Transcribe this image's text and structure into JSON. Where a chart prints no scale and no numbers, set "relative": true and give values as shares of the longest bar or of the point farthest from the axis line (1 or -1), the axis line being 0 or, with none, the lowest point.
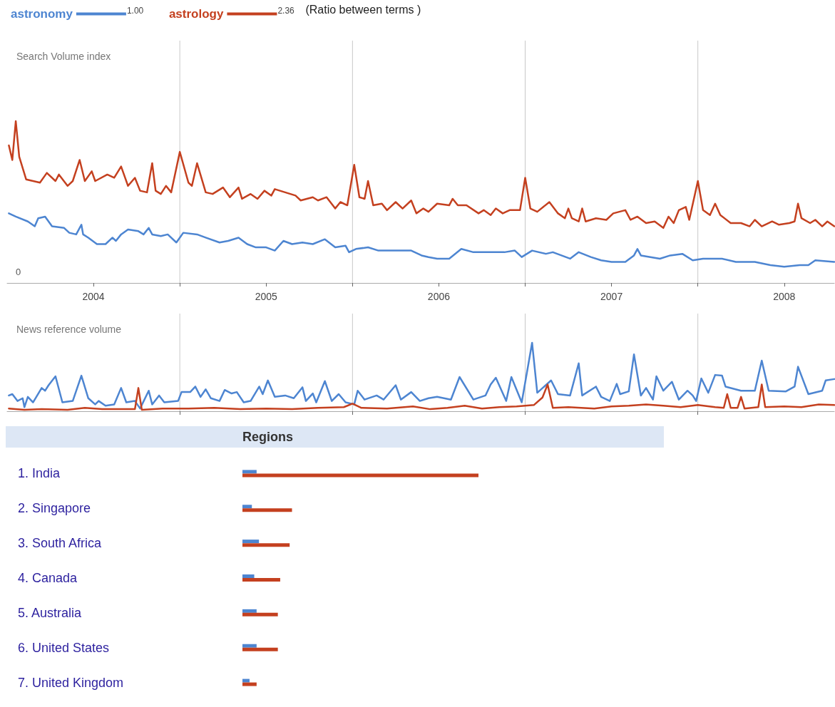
{
  "chart_data": [
    {
      "type": "line",
      "title": "Search Volume index",
      "relative": true,
      "grid": "x",
      "legend": "top left",
      "tick_labels": "x",
      "xlim": [
        2004,
        2008.79
      ],
      "xticks": [
        {
          "value": 2004.5,
          "label": "2004"
        },
        {
          "value": 2005,
          "label": null
        },
        {
          "value": 2005.5,
          "label": "2005"
        },
        {
          "value": 2006,
          "label": null
        },
        {
          "value": 2006.5,
          "label": "2006"
        },
        {
          "value": 2007,
          "label": null
        },
        {
          "value": 2007.5,
          "label": "2007"
        },
        {
          "value": 2008,
          "label": null
        },
        {
          "value": 2008.5,
          "label": "2008"
        }
      ],
      "annotations": [
        "1.00",
        "2.36",
        "(Ratio between terms )",
        "0"
      ],
      "series": [
        {
          "name": "astronomy",
          "color": "#4d85d1",
          "x": [
            2004.01,
            2004.05,
            2004.12,
            2004.16,
            2004.18,
            2004.22,
            2004.26,
            2004.33,
            2004.36,
            2004.4,
            2004.43,
            2004.44,
            2004.47,
            2004.52,
            2004.57,
            2004.61,
            2004.63,
            2004.66,
            2004.7,
            2004.76,
            2004.79,
            2004.82,
            2004.84,
            2004.89,
            2004.93,
            2004.98,
            2005.02,
            2005.1,
            2005.15,
            2005.23,
            2005.28,
            2005.34,
            2005.39,
            2005.44,
            2005.5,
            2005.55,
            2005.6,
            2005.65,
            2005.71,
            2005.77,
            2005.84,
            2005.9,
            2005.96,
            2005.98,
            2006.02,
            2006.09,
            2006.15,
            2006.23,
            2006.34,
            2006.4,
            2006.44,
            2006.49,
            2006.56,
            2006.63,
            2006.7,
            2006.79,
            2006.88,
            2006.94,
            2006.98,
            2007.04,
            2007.12,
            2007.16,
            2007.26,
            2007.31,
            2007.38,
            2007.44,
            2007.5,
            2007.58,
            2007.63,
            2007.65,
            2007.67,
            2007.78,
            2007.84,
            2007.91,
            2007.97,
            2008.03,
            2008.14,
            2008.22,
            2008.33,
            2008.42,
            2008.5,
            2008.59,
            2008.64,
            2008.68,
            2008.79
          ],
          "values": [
            0.43,
            0.41,
            0.38,
            0.35,
            0.4,
            0.41,
            0.35,
            0.34,
            0.31,
            0.3,
            0.36,
            0.3,
            0.28,
            0.24,
            0.24,
            0.28,
            0.26,
            0.3,
            0.33,
            0.32,
            0.3,
            0.34,
            0.3,
            0.29,
            0.3,
            0.25,
            0.31,
            0.3,
            0.28,
            0.25,
            0.26,
            0.28,
            0.24,
            0.22,
            0.22,
            0.2,
            0.26,
            0.24,
            0.25,
            0.24,
            0.27,
            0.22,
            0.23,
            0.19,
            0.21,
            0.22,
            0.2,
            0.2,
            0.2,
            0.17,
            0.16,
            0.15,
            0.15,
            0.21,
            0.19,
            0.19,
            0.19,
            0.2,
            0.16,
            0.2,
            0.18,
            0.19,
            0.15,
            0.19,
            0.16,
            0.14,
            0.13,
            0.13,
            0.17,
            0.21,
            0.17,
            0.15,
            0.17,
            0.18,
            0.14,
            0.15,
            0.15,
            0.13,
            0.13,
            0.11,
            0.1,
            0.11,
            0.11,
            0.14,
            0.13
          ]
        },
        {
          "name": "astrology",
          "color": "#c4401f",
          "x": [
            2004.01,
            2004.03,
            2004.05,
            2004.07,
            2004.11,
            2004.19,
            2004.23,
            2004.28,
            2004.3,
            2004.35,
            2004.38,
            2004.42,
            2004.45,
            2004.49,
            2004.51,
            2004.58,
            2004.62,
            2004.66,
            2004.7,
            2004.74,
            2004.77,
            2004.81,
            2004.84,
            2004.86,
            2004.89,
            2004.92,
            2004.95,
            2005.0,
            2005.05,
            2005.07,
            2005.1,
            2005.15,
            2005.19,
            2005.25,
            2005.29,
            2005.34,
            2005.36,
            2005.41,
            2005.45,
            2005.49,
            2005.53,
            2005.55,
            2005.61,
            2005.67,
            2005.7,
            2005.77,
            2005.8,
            2005.85,
            2005.9,
            2005.93,
            2005.97,
            2006.01,
            2006.04,
            2006.07,
            2006.09,
            2006.12,
            2006.17,
            2006.2,
            2006.25,
            2006.29,
            2006.34,
            2006.37,
            2006.41,
            2006.44,
            2006.49,
            2006.56,
            2006.58,
            2006.61,
            2006.66,
            2006.73,
            2006.76,
            2006.8,
            2006.83,
            2006.87,
            2006.91,
            2006.97,
            2007.0,
            2007.03,
            2007.07,
            2007.14,
            2007.19,
            2007.23,
            2007.25,
            2007.27,
            2007.31,
            2007.33,
            2007.35,
            2007.41,
            2007.47,
            2007.51,
            2007.58,
            2007.61,
            2007.65,
            2007.7,
            2007.75,
            2007.8,
            2007.83,
            2007.86,
            2007.89,
            2007.93,
            2007.95,
            2008.0,
            2008.03,
            2008.07,
            2008.1,
            2008.13,
            2008.19,
            2008.25,
            2008.3,
            2008.33,
            2008.37,
            2008.43,
            2008.47,
            2008.53,
            2008.56,
            2008.58,
            2008.6,
            2008.65,
            2008.68,
            2008.72,
            2008.75,
            2008.79
          ],
          "values": [
            0.85,
            0.76,
            1.0,
            0.78,
            0.64,
            0.62,
            0.68,
            0.63,
            0.67,
            0.6,
            0.63,
            0.76,
            0.63,
            0.69,
            0.63,
            0.67,
            0.65,
            0.72,
            0.6,
            0.65,
            0.57,
            0.56,
            0.74,
            0.57,
            0.55,
            0.6,
            0.56,
            0.81,
            0.62,
            0.6,
            0.74,
            0.56,
            0.55,
            0.59,
            0.53,
            0.59,
            0.52,
            0.55,
            0.52,
            0.57,
            0.54,
            0.58,
            0.56,
            0.54,
            0.51,
            0.53,
            0.51,
            0.53,
            0.46,
            0.5,
            0.48,
            0.73,
            0.53,
            0.52,
            0.63,
            0.48,
            0.49,
            0.45,
            0.5,
            0.46,
            0.51,
            0.43,
            0.46,
            0.44,
            0.49,
            0.48,
            0.52,
            0.48,
            0.48,
            0.43,
            0.45,
            0.42,
            0.46,
            0.43,
            0.45,
            0.45,
            0.65,
            0.46,
            0.44,
            0.5,
            0.43,
            0.4,
            0.46,
            0.4,
            0.38,
            0.46,
            0.38,
            0.4,
            0.39,
            0.43,
            0.45,
            0.39,
            0.41,
            0.37,
            0.38,
            0.34,
            0.41,
            0.37,
            0.45,
            0.47,
            0.39,
            0.63,
            0.45,
            0.42,
            0.49,
            0.42,
            0.37,
            0.37,
            0.35,
            0.39,
            0.35,
            0.38,
            0.36,
            0.37,
            0.38,
            0.49,
            0.4,
            0.37,
            0.39,
            0.35,
            0.38,
            0.35
          ]
        }
      ]
    },
    {
      "type": "line",
      "title": "News reference volume",
      "relative": true,
      "grid": "x",
      "tick_labels": false,
      "xlim": [
        2004,
        2008.79
      ],
      "xticks": [
        {
          "value": 2005,
          "label": null
        },
        {
          "value": 2006,
          "label": null
        },
        {
          "value": 2007,
          "label": null
        },
        {
          "value": 2008,
          "label": null
        }
      ],
      "series": [
        {
          "color": "#4d85d1",
          "x": [
            2004.01,
            2004.03,
            2004.06,
            2004.09,
            2004.1,
            2004.12,
            2004.15,
            2004.2,
            2004.22,
            2004.24,
            2004.28,
            2004.32,
            2004.38,
            2004.43,
            2004.47,
            2004.51,
            2004.53,
            2004.57,
            2004.62,
            2004.66,
            2004.69,
            2004.74,
            2004.77,
            2004.82,
            2004.84,
            2004.88,
            2004.91,
            2004.99,
            2005.01,
            2005.06,
            2005.09,
            2005.12,
            2005.15,
            2005.18,
            2005.23,
            2005.26,
            2005.3,
            2005.33,
            2005.37,
            2005.41,
            2005.46,
            2005.48,
            2005.51,
            2005.55,
            2005.61,
            2005.66,
            2005.71,
            2005.73,
            2005.77,
            2005.79,
            2005.84,
            2005.88,
            2005.92,
            2005.96,
            2006.01,
            2006.03,
            2006.07,
            2006.14,
            2006.18,
            2006.25,
            2006.28,
            2006.34,
            2006.39,
            2006.44,
            2006.49,
            2006.57,
            2006.62,
            2006.7,
            2006.77,
            2006.8,
            2006.83,
            2006.89,
            2006.92,
            2006.98,
            2007.04,
            2007.07,
            2007.15,
            2007.19,
            2007.26,
            2007.31,
            2007.33,
            2007.41,
            2007.44,
            2007.49,
            2007.53,
            2007.55,
            2007.6,
            2007.63,
            2007.67,
            2007.7,
            2007.74,
            2007.76,
            2007.8,
            2007.85,
            2007.89,
            2007.94,
            2007.97,
            2007.99,
            2008.02,
            2008.06,
            2008.1,
            2008.14,
            2008.16,
            2008.25,
            2008.33,
            2008.37,
            2008.41,
            2008.51,
            2008.56,
            2008.58,
            2008.64,
            2008.72,
            2008.74,
            2008.79
          ],
          "values": [
            0.23,
            0.25,
            0.15,
            0.19,
            0.06,
            0.21,
            0.13,
            0.34,
            0.3,
            0.38,
            0.51,
            0.13,
            0.15,
            0.52,
            0.19,
            0.1,
            0.15,
            0.08,
            0.1,
            0.34,
            0.13,
            0.15,
            0.04,
            0.3,
            0.1,
            0.23,
            0.13,
            0.15,
            0.28,
            0.28,
            0.36,
            0.21,
            0.32,
            0.19,
            0.15,
            0.31,
            0.26,
            0.28,
            0.13,
            0.15,
            0.36,
            0.25,
            0.45,
            0.21,
            0.23,
            0.19,
            0.35,
            0.15,
            0.26,
            0.13,
            0.44,
            0.15,
            0.25,
            0.13,
            0.1,
            0.3,
            0.17,
            0.23,
            0.17,
            0.38,
            0.17,
            0.28,
            0.15,
            0.19,
            0.21,
            0.17,
            0.5,
            0.17,
            0.23,
            0.39,
            0.49,
            0.15,
            0.5,
            0.13,
            1.0,
            0.27,
            0.45,
            0.25,
            0.23,
            0.7,
            0.23,
            0.36,
            0.21,
            0.15,
            0.4,
            0.25,
            0.29,
            0.83,
            0.23,
            0.34,
            0.17,
            0.51,
            0.3,
            0.43,
            0.17,
            0.3,
            0.23,
            0.15,
            0.48,
            0.27,
            0.53,
            0.52,
            0.36,
            0.3,
            0.3,
            0.74,
            0.3,
            0.29,
            0.36,
            0.65,
            0.25,
            0.3,
            0.45,
            0.47
          ]
        },
        {
          "color": "#c4401f",
          "x": [
            2004.01,
            2004.1,
            2004.2,
            2004.35,
            2004.45,
            2004.55,
            2004.7,
            2004.74,
            2004.76,
            2004.78,
            2004.9,
            2005.05,
            2005.2,
            2005.35,
            2005.5,
            2005.65,
            2005.8,
            2005.95,
            2006.0,
            2006.05,
            2006.2,
            2006.35,
            2006.45,
            2006.55,
            2006.65,
            2006.75,
            2006.85,
            2006.95,
            2007.05,
            2007.1,
            2007.13,
            2007.16,
            2007.25,
            2007.4,
            2007.5,
            2007.6,
            2007.7,
            2007.8,
            2007.9,
            2008.0,
            2008.1,
            2008.15,
            2008.17,
            2008.19,
            2008.23,
            2008.25,
            2008.27,
            2008.35,
            2008.37,
            2008.39,
            2008.5,
            2008.6,
            2008.7,
            2008.79
          ],
          "values": [
            0.04,
            0.02,
            0.03,
            0.02,
            0.05,
            0.03,
            0.03,
            0.03,
            0.34,
            0.02,
            0.04,
            0.04,
            0.05,
            0.03,
            0.04,
            0.03,
            0.05,
            0.06,
            0.11,
            0.05,
            0.04,
            0.07,
            0.03,
            0.05,
            0.08,
            0.04,
            0.06,
            0.07,
            0.09,
            0.2,
            0.39,
            0.05,
            0.06,
            0.04,
            0.07,
            0.08,
            0.1,
            0.08,
            0.06,
            0.09,
            0.06,
            0.05,
            0.25,
            0.05,
            0.05,
            0.21,
            0.04,
            0.06,
            0.39,
            0.06,
            0.07,
            0.06,
            0.1,
            0.09
          ]
        }
      ]
    },
    {
      "type": "bar",
      "title": "Regions",
      "orientation": "horizontal",
      "relative": true,
      "categories": [
        "1. India",
        "2. Singapore",
        "3. South Africa",
        "4. Canada",
        "5. Australia",
        "6. United States",
        "7. United Kingdom"
      ],
      "series": [
        {
          "color": "#4d85d1",
          "values": [
            0.06,
            0.04,
            0.07,
            0.05,
            0.06,
            0.06,
            0.03
          ]
        },
        {
          "color": "#c4401f",
          "values": [
            1.0,
            0.21,
            0.2,
            0.16,
            0.15,
            0.15,
            0.06
          ]
        }
      ]
    }
  ]
}
